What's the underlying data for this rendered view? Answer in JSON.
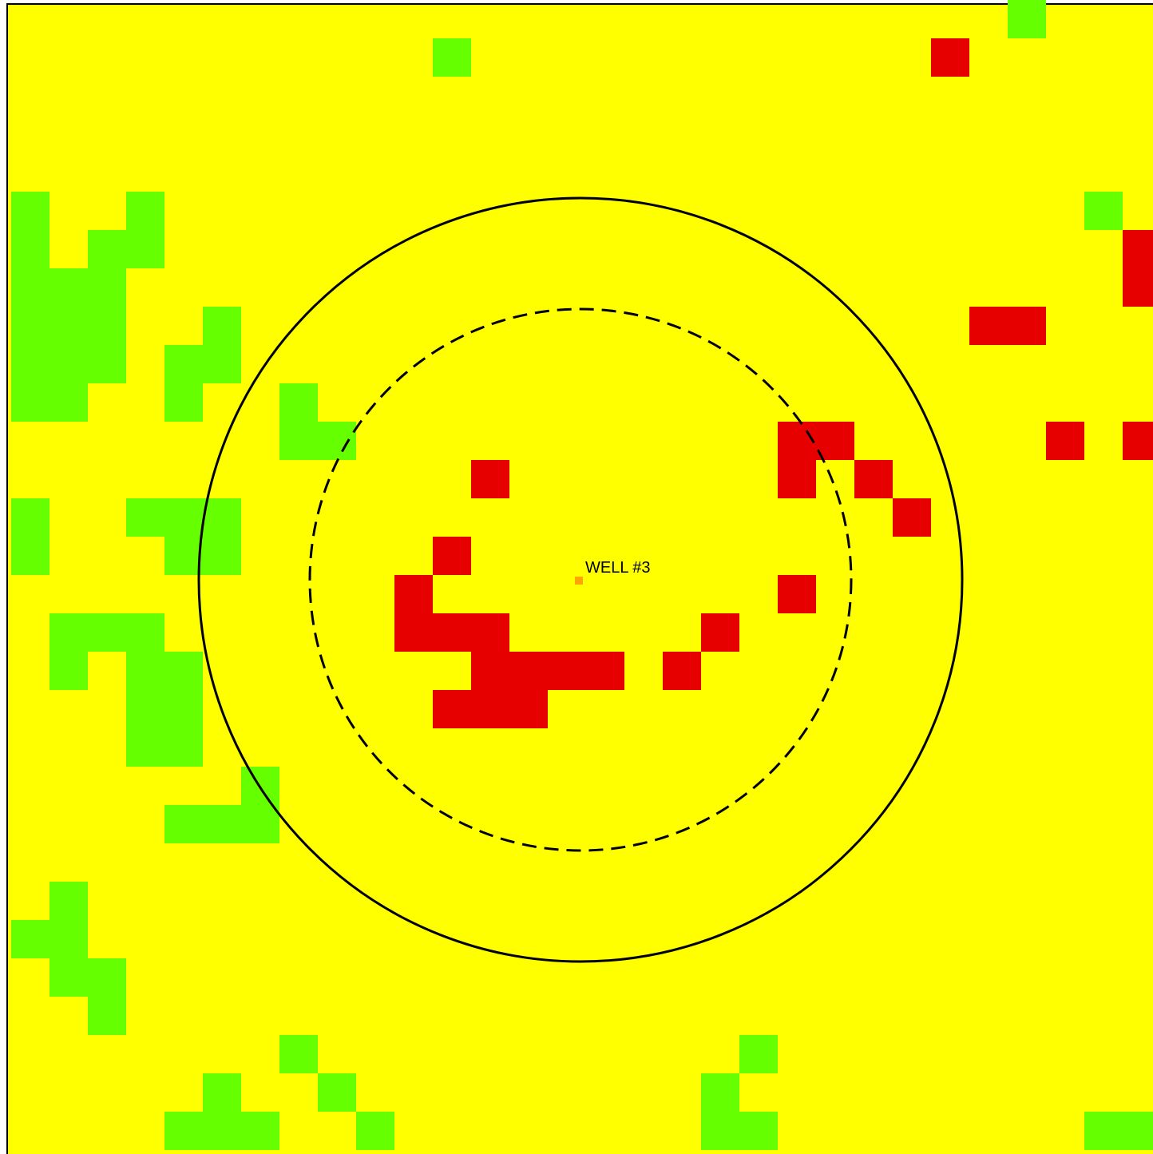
{
  "colors": {
    "background": "#ffff00",
    "zone_green": "#66ff00",
    "zone_red": "#e60000",
    "well_marker": "#ffa500",
    "rings": "#000000"
  },
  "well": {
    "label": "WELL #3"
  },
  "grid": {
    "cell_columns": 30,
    "cell_rows": 30,
    "green_cells": [
      [
        26,
        0
      ],
      [
        11,
        1
      ],
      [
        0,
        5
      ],
      [
        3,
        5
      ],
      [
        28,
        5
      ],
      [
        0,
        6
      ],
      [
        2,
        6
      ],
      [
        3,
        6
      ],
      [
        0,
        7
      ],
      [
        1,
        7
      ],
      [
        2,
        7
      ],
      [
        0,
        8
      ],
      [
        1,
        8
      ],
      [
        2,
        8
      ],
      [
        5,
        8
      ],
      [
        0,
        9
      ],
      [
        1,
        9
      ],
      [
        2,
        9
      ],
      [
        4,
        9
      ],
      [
        5,
        9
      ],
      [
        0,
        10
      ],
      [
        1,
        10
      ],
      [
        4,
        10
      ],
      [
        7,
        10
      ],
      [
        7,
        11
      ],
      [
        8,
        11
      ],
      [
        0,
        13
      ],
      [
        3,
        13
      ],
      [
        4,
        13
      ],
      [
        5,
        13
      ],
      [
        0,
        14
      ],
      [
        4,
        14
      ],
      [
        5,
        14
      ],
      [
        1,
        16
      ],
      [
        2,
        16
      ],
      [
        3,
        16
      ],
      [
        1,
        17
      ],
      [
        3,
        17
      ],
      [
        4,
        17
      ],
      [
        3,
        18
      ],
      [
        4,
        18
      ],
      [
        3,
        19
      ],
      [
        4,
        19
      ],
      [
        6,
        20
      ],
      [
        4,
        21
      ],
      [
        5,
        21
      ],
      [
        6,
        21
      ],
      [
        1,
        23
      ],
      [
        0,
        24
      ],
      [
        1,
        24
      ],
      [
        1,
        25
      ],
      [
        2,
        25
      ],
      [
        2,
        26
      ],
      [
        7,
        27
      ],
      [
        19,
        27
      ],
      [
        5,
        28
      ],
      [
        8,
        28
      ],
      [
        18,
        28
      ],
      [
        4,
        29
      ],
      [
        5,
        29
      ],
      [
        6,
        29
      ],
      [
        9,
        29
      ],
      [
        18,
        29
      ],
      [
        19,
        29
      ],
      [
        28,
        29
      ],
      [
        29,
        29
      ]
    ],
    "red_cells": [
      [
        24,
        1
      ],
      [
        29,
        6
      ],
      [
        29,
        7
      ],
      [
        25,
        8
      ],
      [
        26,
        8
      ],
      [
        20,
        11
      ],
      [
        21,
        11
      ],
      [
        27,
        11
      ],
      [
        29,
        11
      ],
      [
        12,
        12
      ],
      [
        20,
        12
      ],
      [
        22,
        12
      ],
      [
        23,
        13
      ],
      [
        11,
        14
      ],
      [
        10,
        15
      ],
      [
        20,
        15
      ],
      [
        10,
        16
      ],
      [
        11,
        16
      ],
      [
        12,
        16
      ],
      [
        18,
        16
      ],
      [
        12,
        17
      ],
      [
        13,
        17
      ],
      [
        14,
        17
      ],
      [
        15,
        17
      ],
      [
        17,
        17
      ],
      [
        11,
        18
      ],
      [
        12,
        18
      ],
      [
        13,
        18
      ]
    ]
  }
}
